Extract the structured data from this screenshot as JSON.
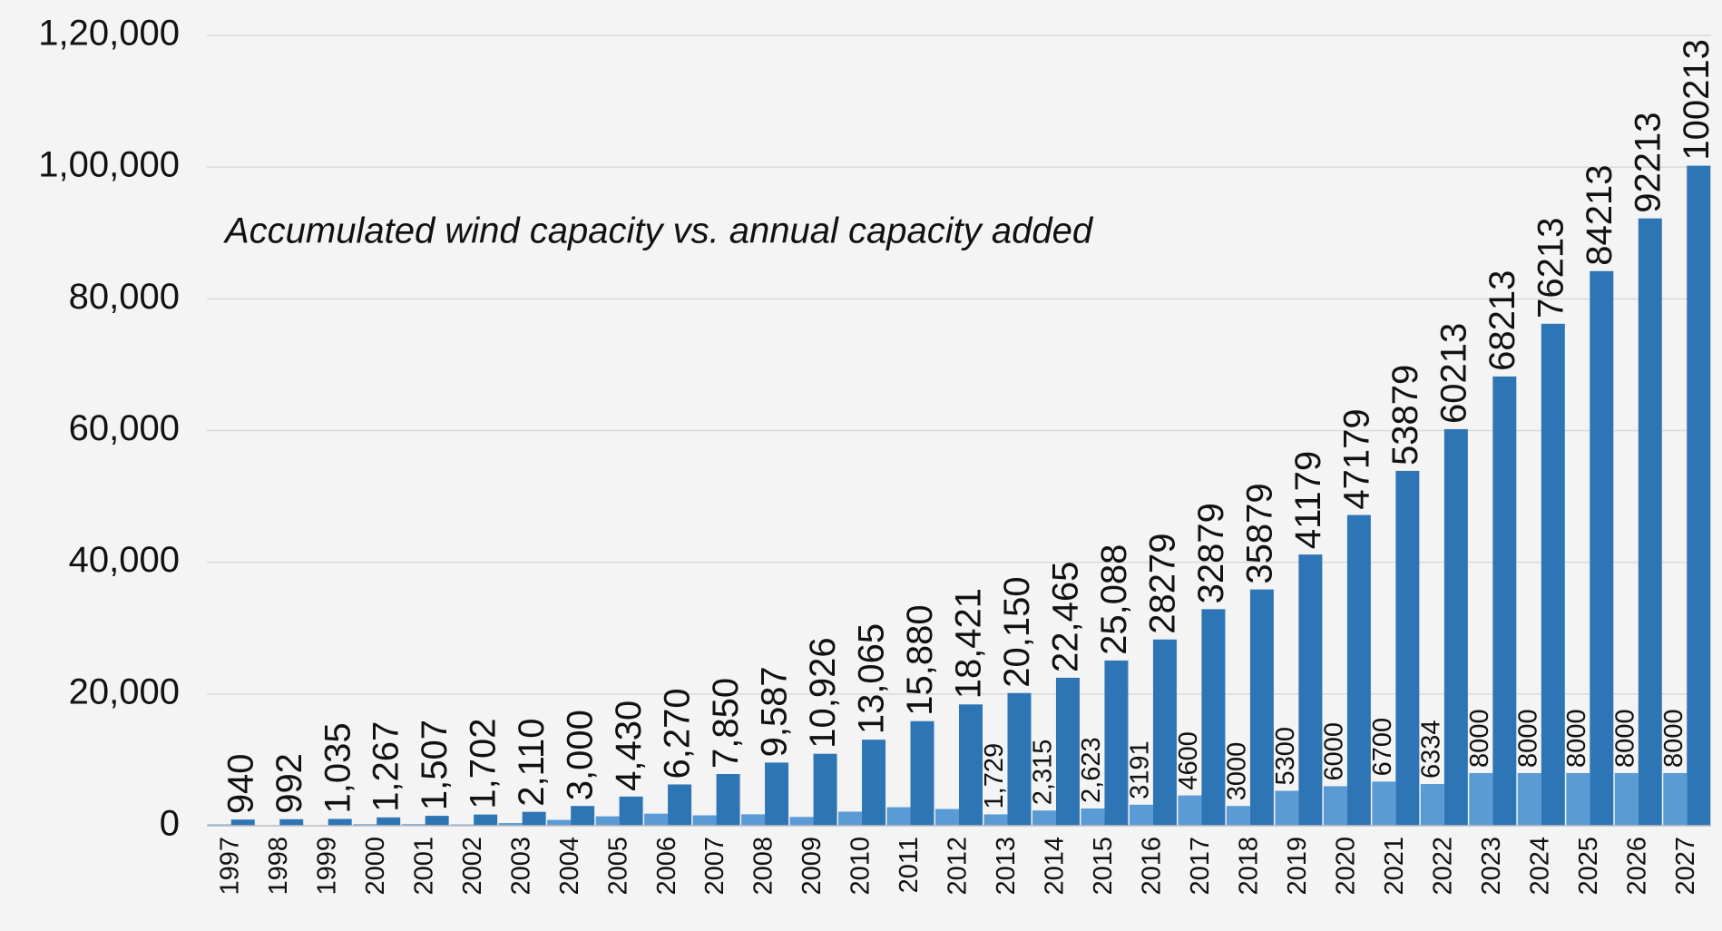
{
  "chart_data": {
    "type": "bar",
    "title": "Accumulated wind capacity vs. annual capacity added",
    "categories": [
      "1997",
      "1998",
      "1999",
      "2000",
      "2001",
      "2002",
      "2003",
      "2004",
      "2005",
      "2006",
      "2007",
      "2008",
      "2009",
      "2010",
      "2011",
      "2012",
      "2013",
      "2014",
      "2015",
      "2016",
      "2017",
      "2018",
      "2019",
      "2020",
      "2021",
      "2022",
      "2023",
      "2024",
      "2025",
      "2026",
      "2027"
    ],
    "series": [
      {
        "name": "Annual capacity added",
        "color": "#5b9bd5",
        "values": [
          200,
          52,
          43,
          232,
          240,
          195,
          408,
          890,
          1430,
          1840,
          1580,
          1737,
          1339,
          2139,
          2815,
          2541,
          1729,
          2315,
          2623,
          3191,
          4600,
          3000,
          5300,
          6000,
          6700,
          6334,
          8000,
          8000,
          8000,
          8000,
          8000
        ],
        "value_labels": [
          null,
          null,
          null,
          null,
          null,
          null,
          null,
          null,
          null,
          null,
          null,
          null,
          null,
          null,
          null,
          null,
          "1,729",
          "2,315",
          "2,623",
          "3191",
          "4600",
          "3000",
          "5300",
          "6000",
          "6700",
          "6334",
          "8000",
          "8000",
          "8000",
          "8000",
          "8000"
        ]
      },
      {
        "name": "Accumulated wind capacity",
        "color": "#2e75b6",
        "values": [
          940,
          992,
          1035,
          1267,
          1507,
          1702,
          2110,
          3000,
          4430,
          6270,
          7850,
          9587,
          10926,
          13065,
          15880,
          18421,
          20150,
          22465,
          25088,
          28279,
          32879,
          35879,
          41179,
          47179,
          53879,
          60213,
          68213,
          76213,
          84213,
          92213,
          100213
        ],
        "value_labels": [
          "940",
          "992",
          "1,035",
          "1,267",
          "1,507",
          "1,702",
          "2,110",
          "3,000",
          "4,430",
          "6,270",
          "7,850",
          "9,587",
          "10,926",
          "13,065",
          "15,880",
          "18,421",
          "20,150",
          "22,465",
          "25,088",
          "28279",
          "32879",
          "35879",
          "41179",
          "47179",
          "53879",
          "60213",
          "68213",
          "76213",
          "84213",
          "92213",
          "100213"
        ]
      }
    ],
    "ylim": [
      0,
      120000
    ],
    "yticks": [
      0,
      {
        "value": 20000,
        "label": "20,000"
      },
      {
        "value": 40000,
        "label": "40,000"
      },
      {
        "value": 60000,
        "label": "60,000"
      },
      {
        "value": 80000,
        "label": "80,000"
      },
      {
        "value": 100000,
        "label": "1,00,000"
      },
      {
        "value": 120000,
        "label": "1,20,000"
      }
    ],
    "grid": true
  }
}
